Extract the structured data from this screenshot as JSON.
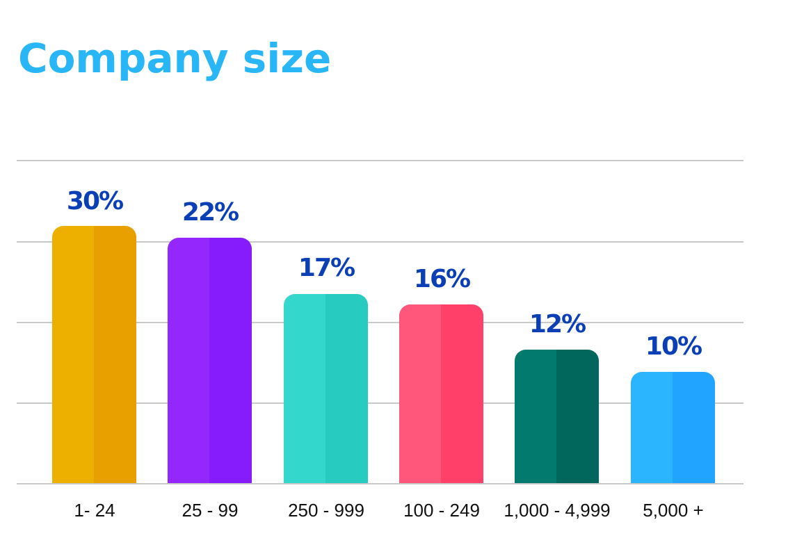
{
  "title": "Company size",
  "chart_data": {
    "type": "bar",
    "title": "Company size",
    "xlabel": "",
    "ylabel": "",
    "categories": [
      "1- 24",
      "25 - 99",
      "250 - 999",
      "100 - 249",
      "1,000 - 4,999",
      "5,000 +"
    ],
    "values": [
      30,
      22,
      17,
      16,
      12,
      10
    ],
    "labels": [
      "30%",
      "22%",
      "17%",
      "16%",
      "12%",
      "10%"
    ],
    "colors": [
      {
        "light": "#eeb000",
        "dark": "#e8a000"
      },
      {
        "light": "#9428fc",
        "dark": "#861cfb"
      },
      {
        "light": "#33d7cb",
        "dark": "#28cbbf"
      },
      {
        "light": "#ff577b",
        "dark": "#ff4068"
      },
      {
        "light": "#027a6d",
        "dark": "#01675c"
      },
      {
        "light": "#2bb4ff",
        "dark": "#20a4ff"
      }
    ],
    "grid": true,
    "legend": "none",
    "label_color": "#0a3fb5",
    "title_color": "#29b6f6"
  }
}
